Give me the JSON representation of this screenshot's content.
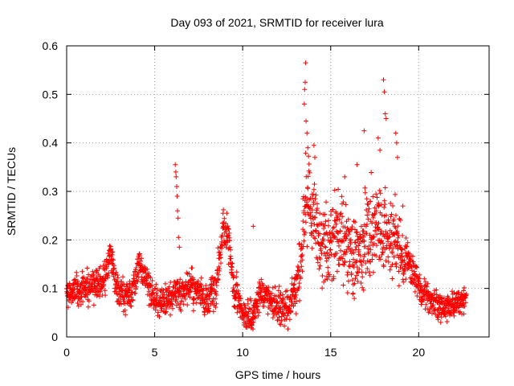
{
  "chart_data": {
    "type": "scatter",
    "title": "Day 093 of 2021, SRMTID for receiver lura",
    "xlabel": "GPS time / hours",
    "ylabel": "SRMTID / TECUs",
    "xlim": [
      0,
      24
    ],
    "ylim": [
      0,
      0.6
    ],
    "xticks": [
      0,
      5,
      10,
      15,
      20
    ],
    "xtick_labels": [
      "0",
      "5",
      "10",
      "15",
      "20"
    ],
    "yticks": [
      0,
      0.1,
      0.2,
      0.3,
      0.4,
      0.5,
      0.6
    ],
    "ytick_labels": [
      "0",
      "0.1",
      "0.2",
      "0.3",
      "0.4",
      "0.5",
      "0.6"
    ],
    "grid": true,
    "marker": "plus",
    "color": "#ff0000",
    "series": [
      {
        "name": "SRMTID",
        "profile_x": [
          0,
          0.5,
          1,
          1.5,
          2,
          2.3,
          2.5,
          2.7,
          3,
          3.5,
          3.8,
          4.1,
          4.5,
          4.7,
          5,
          5.5,
          6,
          6.2,
          6.5,
          7,
          7.5,
          8,
          8.5,
          8.9,
          9.2,
          9.5,
          10,
          10.5,
          11,
          11.5,
          12,
          12.5,
          13,
          13.3,
          13.6,
          14,
          14.5,
          15,
          15.5,
          16,
          16.5,
          17,
          17.5,
          18,
          18.5,
          19,
          19.5,
          20,
          20.5,
          21,
          21.5,
          22,
          22.7
        ],
        "profile_y": [
          0.09,
          0.095,
          0.1,
          0.105,
          0.11,
          0.14,
          0.17,
          0.12,
          0.09,
          0.085,
          0.1,
          0.15,
          0.12,
          0.1,
          0.08,
          0.07,
          0.085,
          0.1,
          0.09,
          0.11,
          0.09,
          0.07,
          0.1,
          0.22,
          0.2,
          0.1,
          0.05,
          0.04,
          0.09,
          0.07,
          0.06,
          0.06,
          0.09,
          0.15,
          0.3,
          0.25,
          0.18,
          0.19,
          0.21,
          0.18,
          0.16,
          0.2,
          0.24,
          0.22,
          0.2,
          0.17,
          0.15,
          0.1,
          0.08,
          0.065,
          0.06,
          0.065,
          0.08
        ],
        "spread_x": [
          0,
          2,
          3,
          5,
          8,
          9,
          10,
          12,
          13,
          13.5,
          14.5,
          16,
          17.5,
          19,
          19.5,
          20,
          22.7
        ],
        "spread_y": [
          0.025,
          0.03,
          0.03,
          0.03,
          0.03,
          0.04,
          0.03,
          0.03,
          0.04,
          0.08,
          0.07,
          0.07,
          0.08,
          0.06,
          0.04,
          0.03,
          0.02
        ],
        "num_points": 2100,
        "peaks": [
          {
            "x": 6.17,
            "y": 0.355
          },
          {
            "x": 6.2,
            "y": 0.34
          },
          {
            "x": 6.22,
            "y": 0.33
          },
          {
            "x": 6.25,
            "y": 0.31
          },
          {
            "x": 6.28,
            "y": 0.29
          },
          {
            "x": 6.3,
            "y": 0.26
          },
          {
            "x": 6.33,
            "y": 0.245
          },
          {
            "x": 6.35,
            "y": 0.205
          },
          {
            "x": 6.4,
            "y": 0.185
          },
          {
            "x": 8.9,
            "y": 0.262
          },
          {
            "x": 9.1,
            "y": 0.255
          },
          {
            "x": 10.6,
            "y": 0.228
          },
          {
            "x": 13.5,
            "y": 0.48
          },
          {
            "x": 13.52,
            "y": 0.51
          },
          {
            "x": 13.55,
            "y": 0.525
          },
          {
            "x": 13.58,
            "y": 0.565
          },
          {
            "x": 13.6,
            "y": 0.445
          },
          {
            "x": 13.65,
            "y": 0.42
          },
          {
            "x": 13.7,
            "y": 0.39
          },
          {
            "x": 14.05,
            "y": 0.395
          },
          {
            "x": 14.1,
            "y": 0.37
          },
          {
            "x": 15.8,
            "y": 0.33
          },
          {
            "x": 16.5,
            "y": 0.355
          },
          {
            "x": 16.9,
            "y": 0.425
          },
          {
            "x": 17.7,
            "y": 0.41
          },
          {
            "x": 17.8,
            "y": 0.385
          },
          {
            "x": 18.0,
            "y": 0.53
          },
          {
            "x": 18.05,
            "y": 0.505
          },
          {
            "x": 18.1,
            "y": 0.46
          },
          {
            "x": 18.15,
            "y": 0.45
          },
          {
            "x": 18.7,
            "y": 0.42
          },
          {
            "x": 18.75,
            "y": 0.4
          },
          {
            "x": 18.8,
            "y": 0.37
          },
          {
            "x": 19.1,
            "y": 0.27
          }
        ]
      }
    ]
  }
}
